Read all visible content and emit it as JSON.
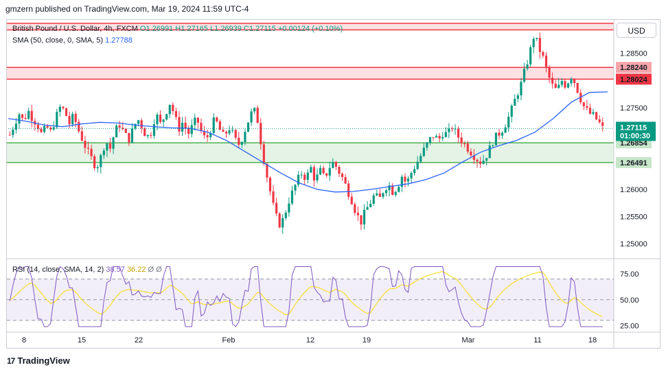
{
  "header": {
    "text": "gmzern published on TradingView.com, Mar 19, 2024 11:59 UTC-4"
  },
  "currency_button": "USD",
  "legend": {
    "symbol": "British Pound / U.S. Dollar, 4h, FXCM",
    "open": "O1.26991",
    "high": "H1.27165",
    "low": "L1.26939",
    "close": "C1.27115",
    "change": "+0.00124 (+0.10%)",
    "sma_label": "SMA (50, close, 0, SMA, 5)",
    "sma_value": "1.27788"
  },
  "rsi_legend": {
    "label": "RSI (14, close, SMA, 14, 2)",
    "rsi_value": "38.57",
    "sma_value": "36.22",
    "extra": "Ø Ø"
  },
  "price_axis": {
    "ticks": [
      "1.28500",
      "1.27500",
      "1.26000",
      "1.25500",
      "1.25000"
    ],
    "labels": {
      "upper_zone_top": "1.28240",
      "upper_zone_bottom": "1.28024",
      "current_price": "1.27115",
      "countdown": "01:00:30",
      "lower_zone_top": "1.26854",
      "lower_zone_bottom": "1.26491"
    }
  },
  "rsi_axis": {
    "ticks": [
      "75.00",
      "50.00",
      "25.00"
    ]
  },
  "time_axis": {
    "ticks": [
      "8",
      "15",
      "22",
      "Feb",
      "12",
      "19",
      "Mar",
      "11",
      "18"
    ]
  },
  "footer": {
    "brand": "TradingView",
    "brand_mark": "17"
  },
  "colors": {
    "up": "#089981",
    "down": "#f23645",
    "sma": "#2962ff",
    "rsi": "#7e57c2",
    "rsi_sma": "#f7e03a",
    "zone_red": "#f23645",
    "zone_green": "#4caf50"
  },
  "chart_data": {
    "type": "candlestick",
    "timeframe": "4h",
    "y_range": [
      1.2475,
      1.291
    ],
    "zones": [
      {
        "kind": "resistance",
        "top": 1.2905,
        "bottom": 1.2893
      },
      {
        "kind": "resistance",
        "top": 1.2824,
        "bottom": 1.28024
      },
      {
        "kind": "support",
        "top": 1.26854,
        "bottom": 1.26491
      }
    ],
    "price_path": [
      1.27,
      1.272,
      1.274,
      1.2725,
      1.2745,
      1.273,
      1.272,
      1.27,
      1.2715,
      1.2705,
      1.273,
      1.275,
      1.2745,
      1.272,
      1.2735,
      1.271,
      1.269,
      1.267,
      1.2655,
      1.264,
      1.266,
      1.269,
      1.2675,
      1.2705,
      1.272,
      1.2705,
      1.269,
      1.271,
      1.273,
      1.2715,
      1.2695,
      1.2705,
      1.274,
      1.272,
      1.2735,
      1.276,
      1.274,
      1.271,
      1.2725,
      1.27,
      1.2715,
      1.273,
      1.2705,
      1.269,
      1.271,
      1.273,
      1.271,
      1.2695,
      1.2715,
      1.27,
      1.268,
      1.2695,
      1.272,
      1.274,
      1.2745,
      1.269,
      1.264,
      1.26,
      1.256,
      1.2535,
      1.2545,
      1.2575,
      1.2595,
      1.2615,
      1.263,
      1.262,
      1.264,
      1.2615,
      1.2635,
      1.262,
      1.264,
      1.265,
      1.2635,
      1.262,
      1.26,
      1.258,
      1.2555,
      1.254,
      1.256,
      1.2575,
      1.259,
      1.258,
      1.26,
      1.261,
      1.2595,
      1.2605,
      1.2625,
      1.261,
      1.263,
      1.2645,
      1.266,
      1.2675,
      1.269,
      1.27,
      1.269,
      1.2705,
      1.27,
      1.2715,
      1.27,
      1.269,
      1.268,
      1.267,
      1.266,
      1.265,
      1.2655,
      1.267,
      1.269,
      1.27,
      1.271,
      1.2725,
      1.2745,
      1.277,
      1.279,
      1.282,
      1.285,
      1.2885,
      1.286,
      1.284,
      1.281,
      1.279,
      1.278,
      1.28,
      1.279,
      1.281,
      1.2795,
      1.277,
      1.275,
      1.274,
      1.2735,
      1.2725,
      1.2712
    ],
    "sma50_path": [
      1.273,
      1.2725,
      1.2718,
      1.2715,
      1.272,
      1.2723,
      1.2722,
      1.2718,
      1.2715,
      1.2713,
      1.2712,
      1.2705,
      1.269,
      1.267,
      1.265,
      1.263,
      1.2612,
      1.26,
      1.2595,
      1.2596,
      1.26,
      1.2605,
      1.261,
      1.2618,
      1.263,
      1.265,
      1.2668,
      1.268,
      1.269,
      1.2705,
      1.273,
      1.276,
      1.2778,
      1.2779
    ],
    "rsi": {
      "range": [
        20,
        85
      ],
      "levels": [
        70,
        50,
        30
      ],
      "last_rsi": 38.57,
      "last_sma": 36.22
    }
  }
}
